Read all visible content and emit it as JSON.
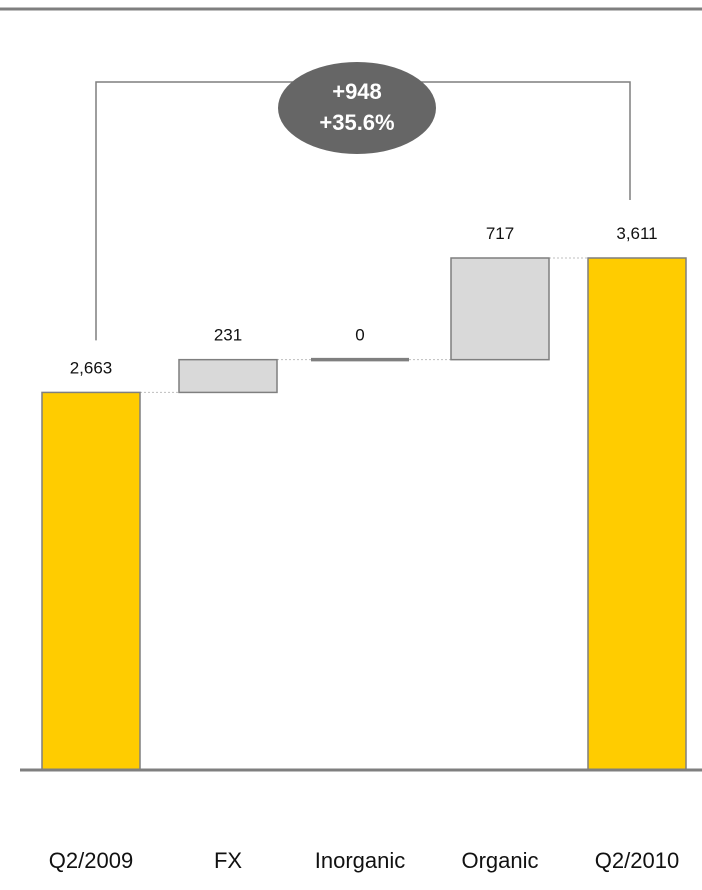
{
  "chart_data": {
    "type": "waterfall",
    "categories": [
      "Q2/2009",
      "FX",
      "Inorganic",
      "Organic",
      "Q2/2010"
    ],
    "steps": [
      {
        "label": "Q2/2009",
        "kind": "total",
        "value": 2663,
        "value_label": "2,663"
      },
      {
        "label": "FX",
        "kind": "delta",
        "value": 231,
        "value_label": "231"
      },
      {
        "label": "Inorganic",
        "kind": "delta",
        "value": 0,
        "value_label": "0"
      },
      {
        "label": "Organic",
        "kind": "delta",
        "value": 717,
        "value_label": "717"
      },
      {
        "label": "Q2/2010",
        "kind": "total",
        "value": 3611,
        "value_label": "3,611"
      }
    ],
    "change_annotation": {
      "absolute": "+948",
      "percent": "+35.6%"
    },
    "ylim": [
      0,
      3611
    ],
    "grid": false,
    "colors": {
      "total": "#FFCC00",
      "delta": "#D9D9D9",
      "bar_border": "#7F7F7F",
      "badge": "#666666",
      "axis": "#7F7F7F"
    }
  }
}
